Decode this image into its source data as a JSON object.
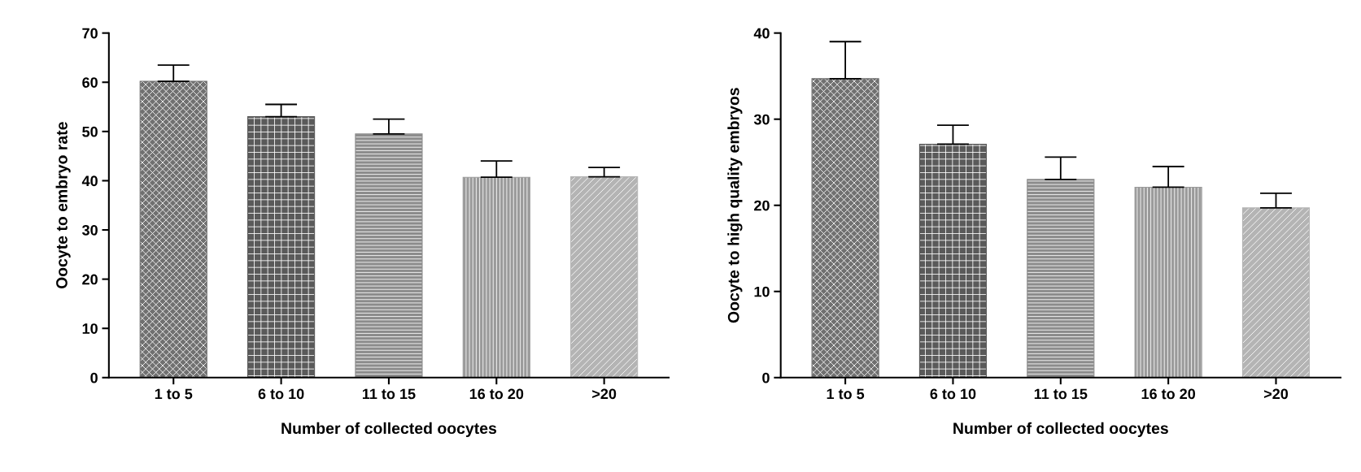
{
  "chart_data": [
    {
      "type": "bar",
      "categories": [
        "1 to 5",
        "6 to 10",
        "11 to 15",
        "16 to 20",
        ">20"
      ],
      "values": [
        60.2,
        53.0,
        49.5,
        40.7,
        40.8
      ],
      "errors": [
        3.3,
        2.5,
        3.0,
        3.3,
        1.9
      ],
      "colors": [
        "#707070",
        "#5a5a5a",
        "#8c8c8c",
        "#9a9a9a",
        "#b4b4b4"
      ],
      "xlabel": "Number of collected oocytes",
      "ylabel": "Oocyte to embryo rate",
      "ylim": [
        0,
        70
      ],
      "yticks": [
        0,
        10,
        20,
        30,
        40,
        50,
        60,
        70
      ],
      "grid": false,
      "legend": false
    },
    {
      "type": "bar",
      "categories": [
        "1 to 5",
        "6 to 10",
        "11 to 15",
        "16 to 20",
        ">20"
      ],
      "values": [
        34.7,
        27.1,
        23.0,
        22.1,
        19.7
      ],
      "errors": [
        4.3,
        2.2,
        2.6,
        2.4,
        1.7
      ],
      "colors": [
        "#707070",
        "#5a5a5a",
        "#8c8c8c",
        "#9a9a9a",
        "#b4b4b4"
      ],
      "xlabel": "Number of collected oocytes",
      "ylabel": "Oocyte to high quality embryos",
      "ylim": [
        0,
        40
      ],
      "yticks": [
        0,
        10,
        20,
        30,
        40
      ],
      "grid": false,
      "legend": false
    }
  ]
}
